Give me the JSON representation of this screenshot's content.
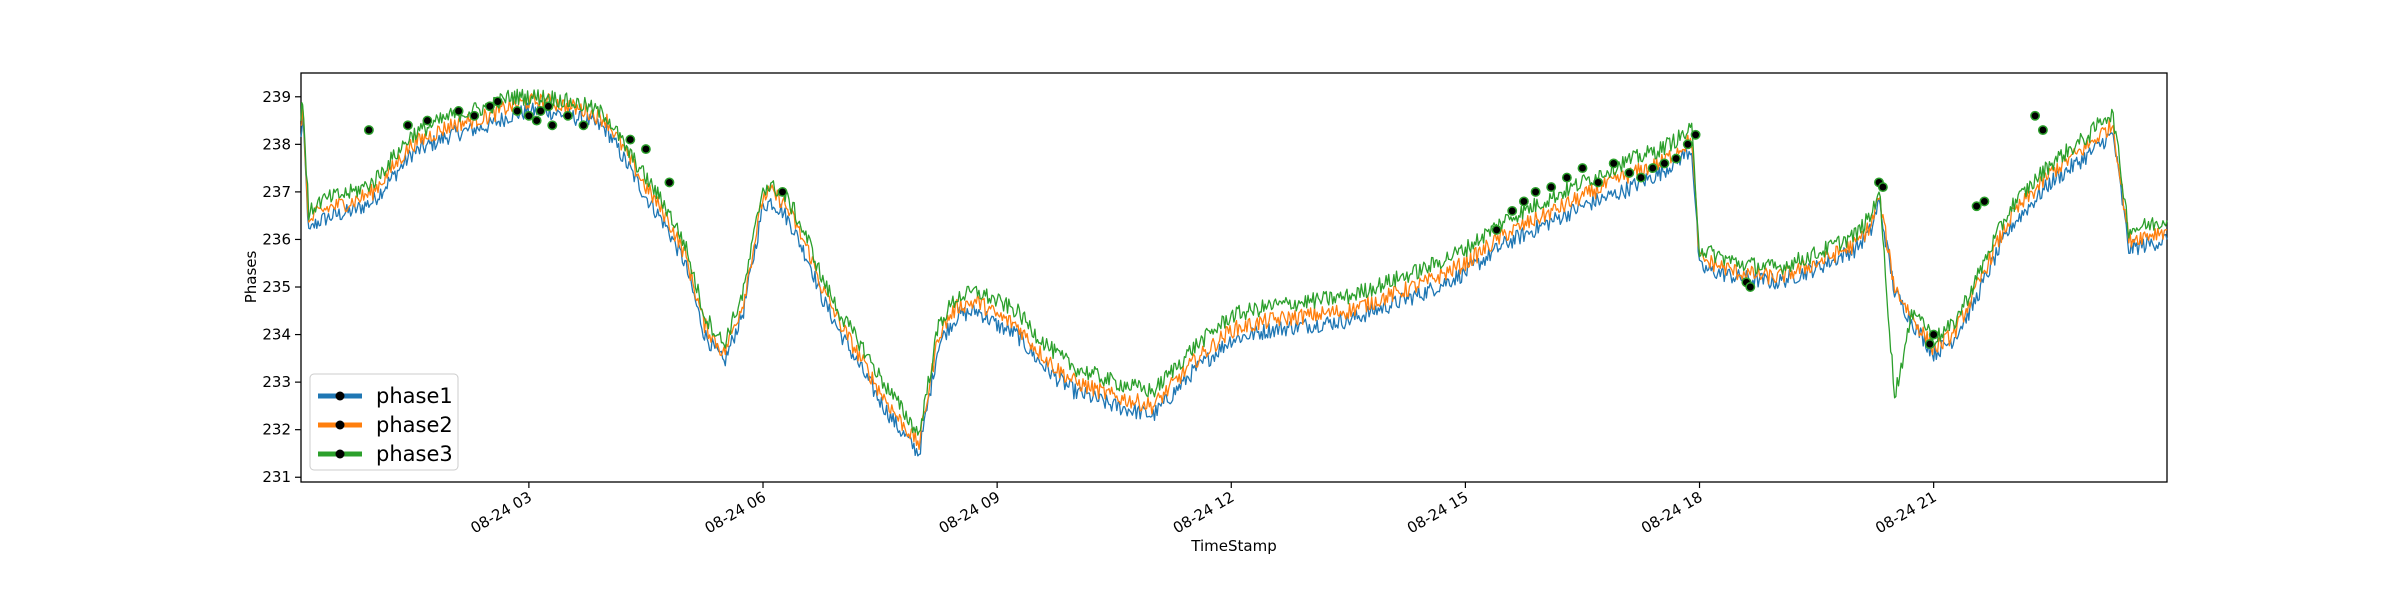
{
  "chart_data": {
    "type": "line",
    "title": "",
    "xlabel": "TimeStamp",
    "ylabel": "Phases",
    "x_axis_kind": "datetime",
    "x_range": [
      "08-24 00:05",
      "08-24 23:59"
    ],
    "ylim": [
      230.9,
      239.5
    ],
    "x_ticks": [
      "08-24 03",
      "08-24 06",
      "08-24 09",
      "08-24 12",
      "08-24 15",
      "08-24 18",
      "08-24 21"
    ],
    "x_tick_hours": [
      3,
      6,
      9,
      12,
      15,
      18,
      21
    ],
    "y_ticks": [
      231,
      232,
      233,
      234,
      235,
      236,
      237,
      238,
      239
    ],
    "grid": false,
    "legend_position": "lower-left",
    "colors": {
      "phase1": "#1f77b4",
      "phase2": "#ff7f0e",
      "phase3": "#2ca02c",
      "marker": "#000000"
    },
    "sample_hours": [
      0.08,
      0.1,
      0.18,
      0.25,
      0.33,
      0.5,
      0.75,
      1.0,
      1.25,
      1.5,
      1.75,
      2.0,
      2.25,
      2.5,
      2.75,
      3.0,
      3.25,
      3.5,
      3.75,
      4.0,
      4.25,
      4.5,
      4.75,
      5.0,
      5.25,
      5.5,
      5.75,
      6.0,
      6.1,
      6.25,
      6.4,
      6.45,
      6.6,
      6.75,
      7.0,
      7.25,
      7.5,
      7.75,
      8.0,
      8.25,
      8.4,
      8.5,
      8.75,
      9.0,
      9.25,
      9.5,
      9.75,
      10.0,
      10.5,
      11.0,
      11.5,
      12.0,
      12.5,
      13.0,
      13.5,
      14.0,
      14.5,
      15.0,
      15.5,
      16.0,
      16.5,
      17.0,
      17.5,
      17.9,
      18.0,
      18.5,
      19.0,
      19.5,
      20.0,
      20.2,
      20.3,
      20.5,
      20.75,
      21.0,
      21.25,
      21.5,
      21.75,
      22.0,
      22.5,
      23.0,
      23.2,
      23.3,
      23.5,
      23.99
    ],
    "series": [
      {
        "name": "phase1",
        "values": [
          238.1,
          238.6,
          236.1,
          236.3,
          236.4,
          236.5,
          236.6,
          236.8,
          237.3,
          237.8,
          238.0,
          238.2,
          238.3,
          238.4,
          238.6,
          238.7,
          238.7,
          238.6,
          238.5,
          238.3,
          237.6,
          236.9,
          236.3,
          235.5,
          234.0,
          233.4,
          234.5,
          236.7,
          236.8,
          236.6,
          236.2,
          236.0,
          235.5,
          234.8,
          234.0,
          233.3,
          232.6,
          232.0,
          231.5,
          233.8,
          234.2,
          234.4,
          234.5,
          234.2,
          234.0,
          233.5,
          233.1,
          232.8,
          232.5,
          232.3,
          233.2,
          233.9,
          234.1,
          234.2,
          234.3,
          234.6,
          234.9,
          235.3,
          235.9,
          236.3,
          236.7,
          237.0,
          237.4,
          237.9,
          235.4,
          235.2,
          235.1,
          235.4,
          235.8,
          236.2,
          236.8,
          234.9,
          234.2,
          233.6,
          233.9,
          234.6,
          235.5,
          236.3,
          237.2,
          237.8,
          238.1,
          238.2,
          235.8,
          236.0
        ]
      },
      {
        "name": "phase2",
        "values": [
          238.3,
          238.8,
          236.3,
          236.5,
          236.6,
          236.7,
          236.8,
          237.0,
          237.5,
          238.0,
          238.2,
          238.4,
          238.5,
          238.6,
          238.8,
          238.9,
          238.9,
          238.8,
          238.7,
          238.5,
          237.8,
          237.1,
          236.5,
          235.7,
          234.2,
          233.6,
          234.7,
          236.9,
          237.0,
          236.8,
          236.4,
          236.2,
          235.7,
          235.0,
          234.2,
          233.5,
          232.8,
          232.2,
          231.7,
          234.0,
          234.4,
          234.6,
          234.7,
          234.4,
          234.2,
          233.7,
          233.3,
          233.0,
          232.7,
          232.5,
          233.4,
          234.1,
          234.3,
          234.4,
          234.5,
          234.8,
          235.1,
          235.5,
          236.1,
          236.5,
          236.9,
          237.3,
          237.6,
          238.1,
          235.6,
          235.3,
          235.2,
          235.5,
          235.9,
          236.3,
          236.9,
          235.0,
          234.3,
          233.7,
          234.0,
          234.8,
          235.7,
          236.5,
          237.4,
          238.0,
          238.3,
          238.4,
          236.0,
          236.2
        ]
      },
      {
        "name": "phase3",
        "values": [
          238.5,
          239.0,
          236.5,
          236.7,
          236.8,
          236.9,
          237.0,
          237.2,
          237.7,
          238.2,
          238.4,
          238.6,
          238.7,
          238.8,
          239.0,
          239.0,
          239.0,
          238.9,
          238.8,
          238.6,
          237.9,
          237.3,
          236.7,
          235.9,
          234.4,
          233.8,
          234.9,
          237.1,
          237.1,
          237.0,
          236.6,
          236.4,
          235.9,
          235.2,
          234.4,
          233.8,
          233.1,
          232.5,
          231.9,
          234.2,
          234.6,
          234.8,
          234.9,
          234.7,
          234.5,
          234.0,
          233.6,
          233.3,
          233.0,
          232.8,
          233.7,
          234.4,
          234.6,
          234.7,
          234.8,
          235.1,
          235.4,
          235.8,
          236.4,
          236.8,
          237.2,
          237.6,
          237.9,
          238.3,
          235.8,
          235.5,
          235.4,
          235.7,
          236.1,
          236.5,
          237.1,
          232.7,
          234.6,
          233.9,
          234.2,
          235.0,
          235.9,
          236.7,
          237.6,
          238.2,
          238.6,
          238.6,
          236.2,
          236.4
        ]
      }
    ],
    "highlighted_points": {
      "x_hours": [
        0.95,
        1.45,
        1.7,
        2.1,
        2.3,
        2.5,
        2.6,
        2.85,
        3.0,
        3.1,
        3.15,
        3.25,
        3.3,
        3.5,
        3.7,
        4.3,
        4.5,
        4.8,
        6.25,
        15.4,
        15.6,
        15.75,
        15.9,
        16.1,
        16.3,
        16.5,
        16.7,
        16.9,
        17.1,
        17.25,
        17.4,
        17.55,
        17.7,
        17.85,
        17.95,
        18.6,
        18.65,
        20.3,
        20.35,
        20.95,
        21.0,
        21.55,
        21.65,
        22.3,
        22.4
      ],
      "y_values": [
        238.3,
        238.4,
        238.5,
        238.7,
        238.6,
        238.8,
        238.9,
        238.7,
        238.6,
        238.5,
        238.7,
        238.8,
        238.4,
        238.6,
        238.4,
        238.1,
        237.9,
        237.2,
        237.0,
        236.2,
        236.6,
        236.8,
        237.0,
        237.1,
        237.3,
        237.5,
        237.2,
        237.6,
        237.4,
        237.3,
        237.5,
        237.6,
        237.7,
        238.0,
        238.2,
        235.1,
        235.0,
        237.2,
        237.1,
        233.8,
        234.0,
        236.7,
        236.8,
        238.6,
        238.3
      ]
    }
  }
}
